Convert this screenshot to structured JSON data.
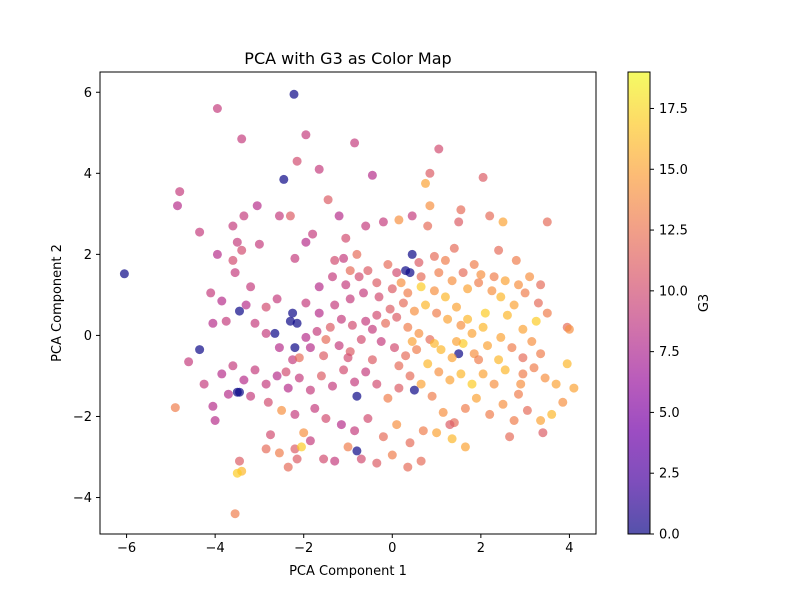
{
  "chart_data": {
    "type": "scatter",
    "title": "PCA with G3 as Color Map",
    "xlabel": "PCA Component 1",
    "ylabel": "PCA Component 2",
    "xlim": [
      -6.6,
      4.6
    ],
    "ylim": [
      -4.9,
      6.5
    ],
    "x_ticks": [
      -6,
      -4,
      -2,
      0,
      2,
      4
    ],
    "y_ticks": [
      -4,
      -2,
      0,
      2,
      4,
      6
    ],
    "grid": false,
    "colorbar": {
      "label": "G3",
      "range": [
        0,
        19
      ],
      "ticks": [
        0.0,
        2.5,
        5.0,
        7.5,
        10.0,
        12.5,
        15.0,
        17.5
      ],
      "colormap": "plasma",
      "colormap_stops": [
        "#0d0887",
        "#46039f",
        "#7201a8",
        "#9c179e",
        "#bd3786",
        "#d8576b",
        "#ed7953",
        "#fb9f3a",
        "#fdca26",
        "#f0f921"
      ],
      "alpha": 0.7
    },
    "points": [
      [
        -6.05,
        1.52,
        0
      ],
      [
        -2.22,
        5.95,
        0
      ],
      [
        -2.45,
        3.85,
        0
      ],
      [
        -3.45,
        0.6,
        0
      ],
      [
        -2.65,
        0.05,
        0
      ],
      [
        -2.25,
        0.55,
        0
      ],
      [
        -2.3,
        0.35,
        0
      ],
      [
        -2.15,
        0.3,
        0
      ],
      [
        -2.2,
        -0.3,
        0
      ],
      [
        -4.35,
        -0.35,
        0
      ],
      [
        -3.5,
        -1.4,
        0
      ],
      [
        -3.45,
        -1.4,
        0
      ],
      [
        -0.8,
        -2.85,
        0
      ],
      [
        -0.8,
        -1.5,
        0
      ],
      [
        1.5,
        -0.45,
        0
      ],
      [
        0.5,
        -1.35,
        0
      ],
      [
        0.45,
        2.0,
        0
      ],
      [
        0.4,
        1.55,
        0
      ],
      [
        0.3,
        1.6,
        0
      ],
      [
        -3.95,
        5.6,
        9
      ],
      [
        -3.4,
        4.85,
        9
      ],
      [
        -1.95,
        4.95,
        9
      ],
      [
        -2.15,
        4.3,
        10
      ],
      [
        -1.65,
        4.1,
        9
      ],
      [
        -0.85,
        4.75,
        9
      ],
      [
        -0.45,
        3.95,
        8
      ],
      [
        1.05,
        4.6,
        10
      ],
      [
        2.05,
        3.9,
        11
      ],
      [
        0.85,
        4.0,
        11
      ],
      [
        -4.8,
        3.55,
        9
      ],
      [
        -4.85,
        3.2,
        8
      ],
      [
        -3.05,
        3.2,
        8
      ],
      [
        -2.55,
        2.95,
        9
      ],
      [
        -2.3,
        2.95,
        11
      ],
      [
        -3.6,
        2.7,
        9
      ],
      [
        -3.35,
        2.95,
        9
      ],
      [
        -4.35,
        2.55,
        9
      ],
      [
        -3.5,
        2.3,
        9
      ],
      [
        -3.95,
        2.0,
        8
      ],
      [
        -3.4,
        2.1,
        10
      ],
      [
        -3.6,
        1.85,
        10
      ],
      [
        -3.55,
        1.55,
        9
      ],
      [
        -3.2,
        1.2,
        9
      ],
      [
        -4.1,
        1.05,
        9
      ],
      [
        -3.85,
        0.85,
        8
      ],
      [
        -3.0,
        2.25,
        9
      ],
      [
        -2.2,
        1.9,
        9
      ],
      [
        -1.8,
        2.5,
        9
      ],
      [
        -1.95,
        2.3,
        8
      ],
      [
        -1.45,
        3.35,
        11
      ],
      [
        -1.2,
        2.95,
        8
      ],
      [
        -1.05,
        2.4,
        10
      ],
      [
        -0.6,
        2.7,
        9
      ],
      [
        -0.2,
        2.8,
        9
      ],
      [
        0.15,
        2.85,
        14
      ],
      [
        0.45,
        2.95,
        9
      ],
      [
        0.8,
        2.7,
        12
      ],
      [
        0.85,
        3.2,
        14
      ],
      [
        1.55,
        3.1,
        12
      ],
      [
        1.5,
        2.8,
        11
      ],
      [
        2.2,
        2.95,
        12
      ],
      [
        2.5,
        2.8,
        15
      ],
      [
        3.5,
        2.8,
        12
      ],
      [
        0.75,
        3.75,
        15
      ],
      [
        -1.1,
        1.9,
        9
      ],
      [
        -0.8,
        2.0,
        12
      ],
      [
        -0.55,
        1.6,
        11
      ],
      [
        -0.1,
        1.75,
        12
      ],
      [
        0.1,
        1.55,
        10
      ],
      [
        0.6,
        1.8,
        11
      ],
      [
        0.95,
        1.95,
        12
      ],
      [
        1.2,
        1.85,
        13
      ],
      [
        1.4,
        2.15,
        12
      ],
      [
        1.85,
        1.75,
        13
      ],
      [
        2.0,
        1.5,
        14
      ],
      [
        2.3,
        1.45,
        13
      ],
      [
        2.55,
        1.35,
        15
      ],
      [
        2.85,
        1.25,
        14
      ],
      [
        3.0,
        1.05,
        13
      ],
      [
        3.3,
        0.8,
        12
      ],
      [
        3.5,
        0.55,
        13
      ],
      [
        3.95,
        0.2,
        12
      ],
      [
        4.0,
        0.15,
        14
      ],
      [
        2.45,
        0.95,
        16
      ],
      [
        2.75,
        0.75,
        15
      ],
      [
        3.25,
        0.35,
        17
      ],
      [
        2.1,
        0.55,
        17
      ],
      [
        1.7,
        0.4,
        16
      ],
      [
        1.45,
        0.7,
        15
      ],
      [
        1.2,
        0.95,
        16
      ],
      [
        0.95,
        1.1,
        14
      ],
      [
        0.65,
        1.2,
        17
      ],
      [
        0.35,
        1.05,
        13
      ],
      [
        0.0,
        1.15,
        11
      ],
      [
        -0.3,
        0.95,
        10
      ],
      [
        -0.65,
        1.05,
        9
      ],
      [
        -0.95,
        0.9,
        9
      ],
      [
        -1.3,
        0.75,
        9
      ],
      [
        -1.65,
        0.55,
        8
      ],
      [
        -1.95,
        0.8,
        9
      ],
      [
        -2.6,
        0.9,
        9
      ],
      [
        -2.85,
        0.7,
        10
      ],
      [
        -3.3,
        0.75,
        8
      ],
      [
        -3.75,
        0.35,
        9
      ],
      [
        -4.05,
        0.3,
        8
      ],
      [
        -3.1,
        0.3,
        9
      ],
      [
        -2.85,
        0.05,
        9
      ],
      [
        -2.55,
        -0.3,
        8
      ],
      [
        -2.25,
        -0.6,
        9
      ],
      [
        -1.85,
        -0.3,
        8
      ],
      [
        -1.5,
        -0.1,
        12
      ],
      [
        -1.2,
        -0.25,
        9
      ],
      [
        -0.95,
        -0.4,
        11
      ],
      [
        -0.7,
        -0.1,
        10
      ],
      [
        -0.45,
        0.15,
        9
      ],
      [
        -0.15,
        0.3,
        12
      ],
      [
        0.1,
        0.45,
        11
      ],
      [
        0.35,
        0.2,
        13
      ],
      [
        0.6,
        0.05,
        14
      ],
      [
        0.85,
        -0.1,
        12
      ],
      [
        1.1,
        -0.35,
        16
      ],
      [
        1.35,
        -0.55,
        15
      ],
      [
        1.6,
        -0.2,
        17
      ],
      [
        1.85,
        -0.45,
        14
      ],
      [
        2.15,
        -0.25,
        15
      ],
      [
        2.4,
        -0.6,
        16
      ],
      [
        2.7,
        -0.3,
        13
      ],
      [
        2.95,
        -0.55,
        12
      ],
      [
        3.2,
        -0.8,
        13
      ],
      [
        3.45,
        -1.05,
        14
      ],
      [
        3.7,
        -1.2,
        15
      ],
      [
        3.95,
        -0.7,
        16
      ],
      [
        4.1,
        -1.3,
        15
      ],
      [
        3.85,
        -1.65,
        14
      ],
      [
        3.6,
        -1.95,
        16
      ],
      [
        3.35,
        -2.1,
        15
      ],
      [
        3.4,
        -2.4,
        11
      ],
      [
        3.05,
        -1.85,
        12
      ],
      [
        2.75,
        -2.1,
        13
      ],
      [
        2.5,
        -1.7,
        14
      ],
      [
        2.2,
        -1.95,
        13
      ],
      [
        1.9,
        -1.55,
        15
      ],
      [
        1.65,
        -1.8,
        13
      ],
      [
        1.4,
        -2.15,
        12
      ],
      [
        1.15,
        -1.9,
        14
      ],
      [
        0.9,
        -1.5,
        13
      ],
      [
        0.65,
        -1.2,
        15
      ],
      [
        0.4,
        -1.0,
        12
      ],
      [
        0.15,
        -1.3,
        11
      ],
      [
        -0.1,
        -1.55,
        13
      ],
      [
        -0.35,
        -1.2,
        10
      ],
      [
        -0.6,
        -0.9,
        9
      ],
      [
        -0.85,
        -1.15,
        9
      ],
      [
        -1.1,
        -0.85,
        10
      ],
      [
        -1.35,
        -1.25,
        9
      ],
      [
        -1.6,
        -1.0,
        11
      ],
      [
        -1.85,
        -1.35,
        9
      ],
      [
        -2.1,
        -1.05,
        9
      ],
      [
        -2.35,
        -1.3,
        8
      ],
      [
        -2.6,
        -1.0,
        8
      ],
      [
        -2.85,
        -1.2,
        9
      ],
      [
        -3.1,
        -0.85,
        9
      ],
      [
        -3.35,
        -1.1,
        8
      ],
      [
        -3.6,
        -0.75,
        9
      ],
      [
        -3.85,
        -0.95,
        8
      ],
      [
        -4.25,
        -1.2,
        9
      ],
      [
        -4.6,
        -0.65,
        9
      ],
      [
        -4.05,
        -1.75,
        8
      ],
      [
        -4.0,
        -2.1,
        8
      ],
      [
        -4.9,
        -1.78,
        13
      ],
      [
        -3.7,
        -1.45,
        8
      ],
      [
        -3.2,
        -1.5,
        9
      ],
      [
        -2.8,
        -1.65,
        10
      ],
      [
        -2.5,
        -1.85,
        14
      ],
      [
        -2.2,
        -1.95,
        9
      ],
      [
        -1.75,
        -1.8,
        9
      ],
      [
        -1.5,
        -2.05,
        10
      ],
      [
        -1.15,
        -2.2,
        8
      ],
      [
        -0.85,
        -2.35,
        9
      ],
      [
        -0.55,
        -2.05,
        10
      ],
      [
        -0.2,
        -2.5,
        12
      ],
      [
        0.1,
        -2.2,
        14
      ],
      [
        0.4,
        -2.65,
        12
      ],
      [
        0.7,
        -2.35,
        13
      ],
      [
        1.0,
        -2.4,
        15
      ],
      [
        1.3,
        -2.2,
        11
      ],
      [
        1.65,
        -2.75,
        15
      ],
      [
        1.35,
        -2.55,
        16
      ],
      [
        -2.75,
        -2.45,
        10
      ],
      [
        -2.55,
        -2.9,
        13
      ],
      [
        -2.2,
        -2.8,
        11
      ],
      [
        -1.85,
        -2.6,
        9
      ],
      [
        -1.55,
        -3.05,
        10
      ],
      [
        -1.3,
        -3.1,
        9
      ],
      [
        -1.0,
        -2.75,
        13
      ],
      [
        -0.7,
        -3.05,
        10
      ],
      [
        -0.35,
        -3.15,
        11
      ],
      [
        0.0,
        -2.95,
        13
      ],
      [
        0.35,
        -3.25,
        12
      ],
      [
        0.65,
        -3.1,
        12
      ],
      [
        -2.35,
        -3.25,
        12
      ],
      [
        -2.15,
        -3.05,
        11
      ],
      [
        -2.05,
        -2.75,
        17
      ],
      [
        -3.45,
        -3.1,
        11
      ],
      [
        -3.4,
        -3.35,
        16
      ],
      [
        -3.5,
        -3.4,
        17
      ],
      [
        -3.55,
        -4.4,
        13
      ],
      [
        -2.85,
        -2.8,
        12
      ],
      [
        -2.0,
        -2.4,
        14
      ],
      [
        2.65,
        -2.5,
        12
      ],
      [
        2.85,
        -1.45,
        13
      ],
      [
        2.9,
        -1.2,
        14
      ],
      [
        1.7,
        1.15,
        15
      ],
      [
        1.95,
        1.3,
        13
      ],
      [
        2.25,
        1.1,
        14
      ],
      [
        2.6,
        0.5,
        16
      ],
      [
        2.95,
        0.15,
        15
      ],
      [
        3.15,
        -0.15,
        14
      ],
      [
        3.35,
        -0.45,
        13
      ],
      [
        2.05,
        0.2,
        16
      ],
      [
        1.8,
        0.05,
        15
      ],
      [
        1.55,
        0.25,
        14
      ],
      [
        1.25,
        0.4,
        15
      ],
      [
        1.0,
        0.55,
        13
      ],
      [
        0.75,
        0.75,
        16
      ],
      [
        0.5,
        0.6,
        14
      ],
      [
        0.25,
        0.8,
        12
      ],
      [
        -0.05,
        0.65,
        11
      ],
      [
        -0.35,
        0.5,
        10
      ],
      [
        -0.6,
        0.35,
        9
      ],
      [
        -0.9,
        0.25,
        10
      ],
      [
        -1.15,
        0.4,
        9
      ],
      [
        -1.4,
        0.2,
        11
      ],
      [
        -1.7,
        0.1,
        9
      ],
      [
        -1.95,
        -0.05,
        8
      ],
      [
        -0.25,
        -0.15,
        9
      ],
      [
        0.05,
        -0.3,
        10
      ],
      [
        0.3,
        -0.5,
        12
      ],
      [
        0.55,
        -0.35,
        13
      ],
      [
        0.8,
        -0.7,
        16
      ],
      [
        1.05,
        -0.9,
        14
      ],
      [
        1.3,
        -1.1,
        15
      ],
      [
        1.55,
        -0.95,
        16
      ],
      [
        1.8,
        -1.2,
        17
      ],
      [
        2.05,
        -0.95,
        15
      ],
      [
        2.3,
        -1.2,
        14
      ],
      [
        2.55,
        -0.85,
        16
      ],
      [
        -0.75,
        1.45,
        10
      ],
      [
        -1.05,
        1.25,
        9
      ],
      [
        -1.35,
        1.45,
        9
      ],
      [
        -1.65,
        1.2,
        8
      ],
      [
        -0.95,
        1.6,
        12
      ],
      [
        -1.3,
        1.85,
        10
      ],
      [
        -0.35,
        1.3,
        11
      ],
      [
        0.2,
        1.3,
        14
      ],
      [
        0.65,
        1.45,
        12
      ],
      [
        1.05,
        1.55,
        13
      ],
      [
        1.35,
        1.35,
        14
      ],
      [
        1.6,
        1.55,
        12
      ],
      [
        2.4,
        2.1,
        12
      ],
      [
        2.8,
        1.85,
        13
      ],
      [
        3.1,
        1.45,
        14
      ],
      [
        3.35,
        1.25,
        12
      ],
      [
        -2.4,
        -0.9,
        10
      ],
      [
        -2.1,
        -0.55,
        12
      ],
      [
        -1.55,
        -0.5,
        11
      ],
      [
        -1.0,
        -0.55,
        10
      ],
      [
        -0.45,
        -0.6,
        11
      ],
      [
        0.15,
        -0.75,
        12
      ],
      [
        0.45,
        -0.15,
        15
      ],
      [
        0.95,
        -0.2,
        16
      ],
      [
        1.45,
        -0.15,
        15
      ],
      [
        1.95,
        -0.6,
        13
      ],
      [
        2.45,
        -0.05,
        15
      ],
      [
        2.95,
        -0.95,
        13
      ]
    ]
  }
}
